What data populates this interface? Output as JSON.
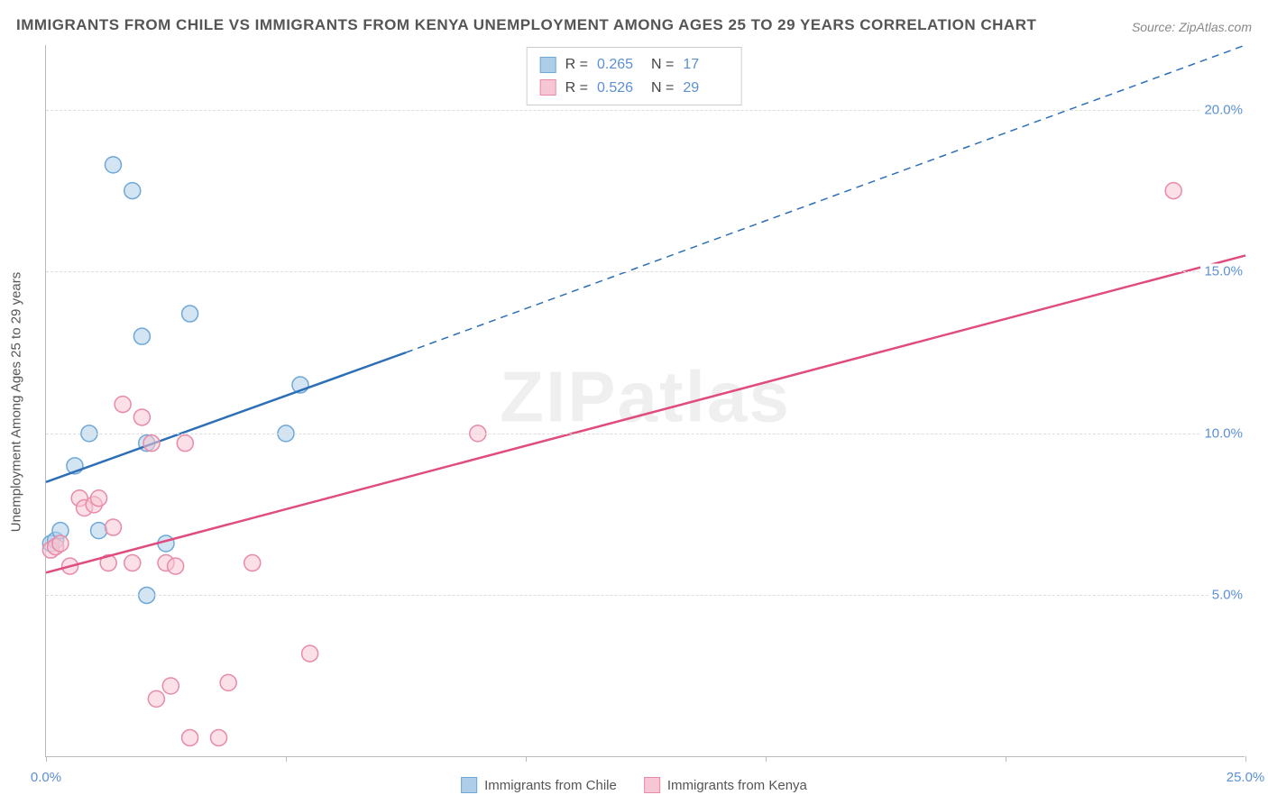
{
  "title": "IMMIGRANTS FROM CHILE VS IMMIGRANTS FROM KENYA UNEMPLOYMENT AMONG AGES 25 TO 29 YEARS CORRELATION CHART",
  "source": "Source: ZipAtlas.com",
  "watermark": "ZIPatlas",
  "y_axis_label": "Unemployment Among Ages 25 to 29 years",
  "chart": {
    "type": "scatter",
    "x_range": [
      0,
      25
    ],
    "y_range": [
      0,
      22
    ],
    "x_ticks": [
      0,
      5,
      10,
      15,
      20,
      25
    ],
    "x_tick_labels": [
      "0.0%",
      "",
      "",
      "",
      "",
      "25.0%"
    ],
    "y_ticks": [
      5,
      10,
      15,
      20
    ],
    "y_tick_labels": [
      "5.0%",
      "10.0%",
      "15.0%",
      "20.0%"
    ],
    "grid_color": "#dddddd",
    "background": "#ffffff",
    "marker_radius": 9,
    "marker_opacity": 0.55,
    "line_width": 2.5
  },
  "series": [
    {
      "name": "Immigrants from Chile",
      "color_fill": "#aecde8",
      "color_stroke": "#6fa8d8",
      "line_color": "#2d6fb7",
      "R": "0.265",
      "N": "17",
      "points": [
        [
          0.1,
          6.6
        ],
        [
          0.2,
          6.7
        ],
        [
          0.3,
          7.0
        ],
        [
          0.6,
          9.0
        ],
        [
          0.9,
          10.0
        ],
        [
          1.1,
          7.0
        ],
        [
          1.4,
          18.3
        ],
        [
          1.8,
          17.5
        ],
        [
          2.0,
          13.0
        ],
        [
          2.1,
          9.7
        ],
        [
          2.1,
          5.0
        ],
        [
          2.5,
          6.6
        ],
        [
          3.0,
          13.7
        ],
        [
          5.0,
          10.0
        ],
        [
          5.3,
          11.5
        ]
      ],
      "line_solid": {
        "x1": 0,
        "y1": 8.5,
        "x2": 7.5,
        "y2": 12.5
      },
      "line_dash": {
        "x1": 7.5,
        "y1": 12.5,
        "x2": 25,
        "y2": 22
      }
    },
    {
      "name": "Immigrants from Kenya",
      "color_fill": "#f7c6d4",
      "color_stroke": "#e88aa8",
      "line_color": "#e04c7f",
      "R": "0.526",
      "N": "29",
      "points": [
        [
          0.1,
          6.4
        ],
        [
          0.2,
          6.5
        ],
        [
          0.3,
          6.6
        ],
        [
          0.5,
          5.9
        ],
        [
          0.7,
          8.0
        ],
        [
          0.8,
          7.7
        ],
        [
          1.0,
          7.8
        ],
        [
          1.1,
          8.0
        ],
        [
          1.3,
          6.0
        ],
        [
          1.4,
          7.1
        ],
        [
          1.6,
          10.9
        ],
        [
          1.8,
          6.0
        ],
        [
          2.0,
          10.5
        ],
        [
          2.2,
          9.7
        ],
        [
          2.3,
          1.8
        ],
        [
          2.5,
          6.0
        ],
        [
          2.6,
          2.2
        ],
        [
          2.7,
          5.9
        ],
        [
          2.9,
          9.7
        ],
        [
          3.0,
          0.6
        ],
        [
          3.6,
          0.6
        ],
        [
          3.8,
          2.3
        ],
        [
          4.3,
          6.0
        ],
        [
          5.5,
          3.2
        ],
        [
          9.0,
          10.0
        ],
        [
          23.5,
          17.5
        ]
      ],
      "line_solid": {
        "x1": 0,
        "y1": 5.7,
        "x2": 25,
        "y2": 15.5
      },
      "line_dash": null
    }
  ],
  "stats_legend": {
    "r_label": "R =",
    "n_label": "N ="
  },
  "bottom_legend": {
    "items": [
      "Immigrants from Chile",
      "Immigrants from Kenya"
    ]
  }
}
